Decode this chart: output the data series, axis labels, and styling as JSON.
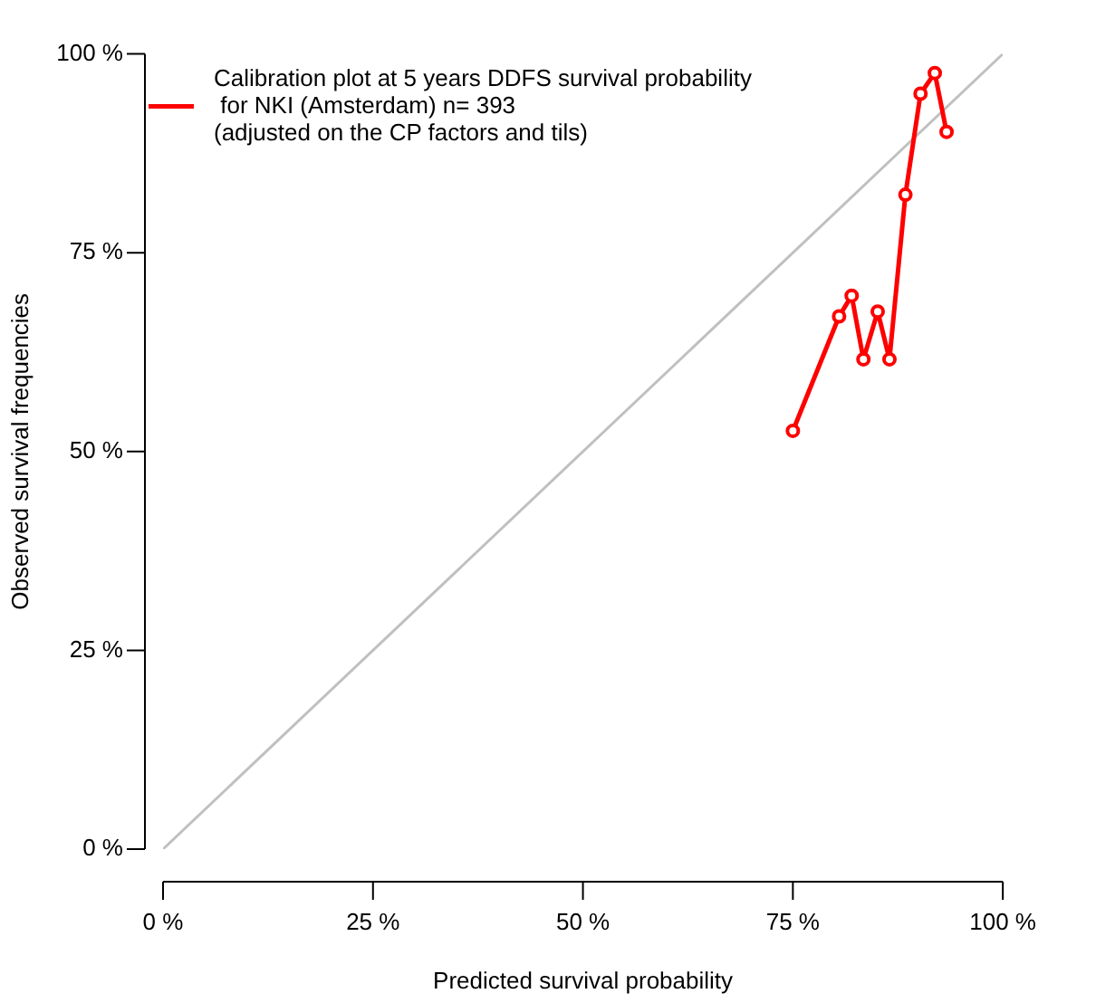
{
  "chart_data": {
    "type": "line",
    "xlabel": "Predicted survival probability",
    "ylabel": "Observed survival frequencies",
    "xlim": [
      0,
      100
    ],
    "ylim": [
      0,
      100
    ],
    "xticks": [
      {
        "value": 0,
        "label": "0 %"
      },
      {
        "value": 25,
        "label": "25 %"
      },
      {
        "value": 50,
        "label": "50 %"
      },
      {
        "value": 75,
        "label": "75 %"
      },
      {
        "value": 100,
        "label": "100 %"
      }
    ],
    "yticks": [
      {
        "value": 0,
        "label": "0 %"
      },
      {
        "value": 25,
        "label": "25 %"
      },
      {
        "value": 50,
        "label": "50 %"
      },
      {
        "value": 75,
        "label": "75 %"
      },
      {
        "value": 100,
        "label": "100 %"
      }
    ],
    "legend": "top left",
    "grid": false,
    "series": [
      {
        "color": "#c0c0c0",
        "marker": "none",
        "x": [
          0,
          100
        ],
        "values": [
          0,
          100
        ]
      },
      {
        "name": "Calibration plot at 5 years DDFS survival probability\n for NKI (Amsterdam) n= 393\n(adjusted on the CP factors and tils)",
        "color": "#ff0000",
        "marker": "circle",
        "x": [
          75.0,
          80.5,
          82.0,
          83.4,
          85.1,
          86.5,
          88.4,
          90.2,
          91.9,
          93.3
        ],
        "values": [
          52.6,
          67.0,
          69.6,
          61.6,
          67.6,
          61.6,
          82.3,
          95.0,
          97.6,
          90.2
        ]
      }
    ]
  }
}
